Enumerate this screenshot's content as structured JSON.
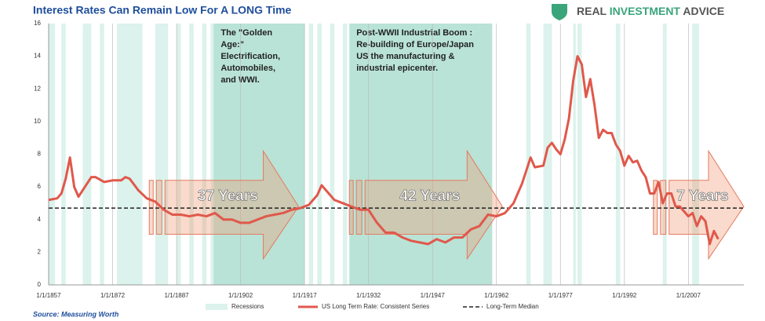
{
  "chart_data": {
    "type": "line",
    "title": "Interest Rates Can Remain Low For A LONG Time",
    "logo": [
      "REAL",
      "INVESTMENT",
      "ADVICE"
    ],
    "source": "Source: Measuring Worth",
    "x": [
      1857,
      1859,
      1860,
      1861,
      1862,
      1863,
      1864,
      1865,
      1867,
      1868,
      1870,
      1872,
      1874,
      1875,
      1876,
      1878,
      1880,
      1882,
      1884,
      1886,
      1888,
      1890,
      1892,
      1894,
      1896,
      1898,
      1900,
      1902,
      1904,
      1906,
      1908,
      1910,
      1912,
      1914,
      1916,
      1918,
      1920,
      1921,
      1922,
      1924,
      1926,
      1928,
      1930,
      1932,
      1934,
      1936,
      1938,
      1940,
      1942,
      1944,
      1946,
      1948,
      1950,
      1952,
      1954,
      1956,
      1958,
      1960,
      1962,
      1964,
      1966,
      1968,
      1970,
      1971,
      1973,
      1974,
      1975,
      1976,
      1977,
      1978,
      1979,
      1980,
      1981,
      1982,
      1983,
      1984,
      1985,
      1986,
      1987,
      1988,
      1989,
      1990,
      1991,
      1992,
      1993,
      1994,
      1995,
      1996,
      1997,
      1998,
      1999,
      2000,
      2001,
      2002,
      2003,
      2004,
      2005,
      2006,
      2007,
      2008,
      2009,
      2010,
      2011,
      2012,
      2013,
      2014
    ],
    "series": [
      {
        "name": "US Long Term Rate:  Consistent Series",
        "color": "#e0584b",
        "values": [
          5.2,
          5.3,
          5.6,
          6.5,
          7.8,
          6.0,
          5.4,
          5.8,
          6.6,
          6.6,
          6.3,
          6.4,
          6.4,
          6.6,
          6.5,
          5.8,
          5.3,
          5.1,
          4.6,
          4.3,
          4.3,
          4.2,
          4.3,
          4.2,
          4.4,
          4.0,
          4.0,
          3.8,
          3.8,
          4.0,
          4.2,
          4.3,
          4.4,
          4.6,
          4.7,
          4.9,
          5.5,
          6.1,
          5.8,
          5.2,
          5.0,
          4.8,
          4.6,
          4.6,
          3.8,
          3.2,
          3.2,
          2.9,
          2.7,
          2.6,
          2.5,
          2.8,
          2.6,
          2.9,
          2.9,
          3.4,
          3.6,
          4.3,
          4.2,
          4.4,
          5.0,
          6.2,
          7.8,
          7.2,
          7.3,
          8.4,
          8.7,
          8.3,
          8.0,
          8.9,
          10.2,
          12.5,
          14.0,
          13.5,
          11.5,
          12.6,
          11.0,
          9.0,
          9.5,
          9.3,
          9.3,
          8.6,
          8.2,
          7.3,
          7.9,
          7.5,
          7.6,
          7.0,
          6.6,
          5.6,
          5.6,
          6.3,
          5.0,
          5.6,
          5.6,
          4.8,
          4.8,
          4.5,
          4.2,
          4.4,
          3.6,
          4.2,
          3.9,
          2.5,
          3.3,
          2.8
        ]
      }
    ],
    "median": {
      "name": "Long-Term Median",
      "value": 4.7
    },
    "recessions": {
      "name": "Recessions",
      "color": "#dcf2ec",
      "periods": [
        [
          1857,
          1858.5
        ],
        [
          1860,
          1861
        ],
        [
          1865,
          1867
        ],
        [
          1869,
          1870
        ],
        [
          1873,
          1879
        ],
        [
          1882,
          1885
        ],
        [
          1887,
          1888
        ],
        [
          1890,
          1891
        ],
        [
          1893,
          1894
        ],
        [
          1895,
          1897
        ],
        [
          1899,
          1900
        ],
        [
          1902,
          1904
        ],
        [
          1907,
          1908
        ],
        [
          1910,
          1912
        ],
        [
          1913,
          1914
        ],
        [
          1918,
          1919
        ],
        [
          1920,
          1921
        ],
        [
          1923,
          1924
        ],
        [
          1926,
          1927
        ],
        [
          1937,
          1938
        ],
        [
          1948,
          1949
        ],
        [
          1953,
          1954
        ],
        [
          1957,
          1958
        ],
        [
          1960,
          1961
        ],
        [
          1969,
          1970
        ],
        [
          1973,
          1975
        ],
        [
          1980,
          1980.6
        ],
        [
          1981,
          1982
        ],
        [
          1990,
          1991
        ],
        [
          2001,
          2001.9
        ],
        [
          2007.9,
          2009.5
        ]
      ]
    },
    "eras": [
      {
        "start": 1895.7,
        "end": 1917,
        "lines": [
          "The \"Golden",
          "Age:\"",
          "Electrification,",
          "Automobiles,",
          "and WWI."
        ]
      },
      {
        "start": 1927.5,
        "end": 1961,
        "lines": [
          "Post-WWII Industrial Boom :",
          "Re-building of Europe/Japan",
          "US the manufacturing &",
          "industrial epicenter."
        ]
      }
    ],
    "arrows": [
      {
        "label": "37 Years",
        "start": 1880.6,
        "end": 1915.6
      },
      {
        "label": "42 Years",
        "start": 1927.5,
        "end": 1963.4
      },
      {
        "label": "7 Years",
        "start": 1998.8,
        "end": 2020
      }
    ],
    "xlim": [
      1857,
      2020
    ],
    "xticks": [
      {
        "value": 1857,
        "label": "1/1/1857"
      },
      {
        "value": 1872,
        "label": "1/1/1872"
      },
      {
        "value": 1887,
        "label": "1/1/1887"
      },
      {
        "value": 1902,
        "label": "1/1/1902"
      },
      {
        "value": 1917,
        "label": "1/1/1917"
      },
      {
        "value": 1932,
        "label": "1/1/1932"
      },
      {
        "value": 1947,
        "label": "1/1/1947"
      },
      {
        "value": 1962,
        "label": "1/1/1962"
      },
      {
        "value": 1977,
        "label": "1/1/1977"
      },
      {
        "value": 1992,
        "label": "1/1/1992"
      },
      {
        "value": 2007,
        "label": "1/1/2007"
      }
    ],
    "ylim": [
      0,
      16
    ],
    "yticks": [
      0,
      2,
      4,
      6,
      8,
      10,
      12,
      14,
      16
    ],
    "grid": true
  }
}
